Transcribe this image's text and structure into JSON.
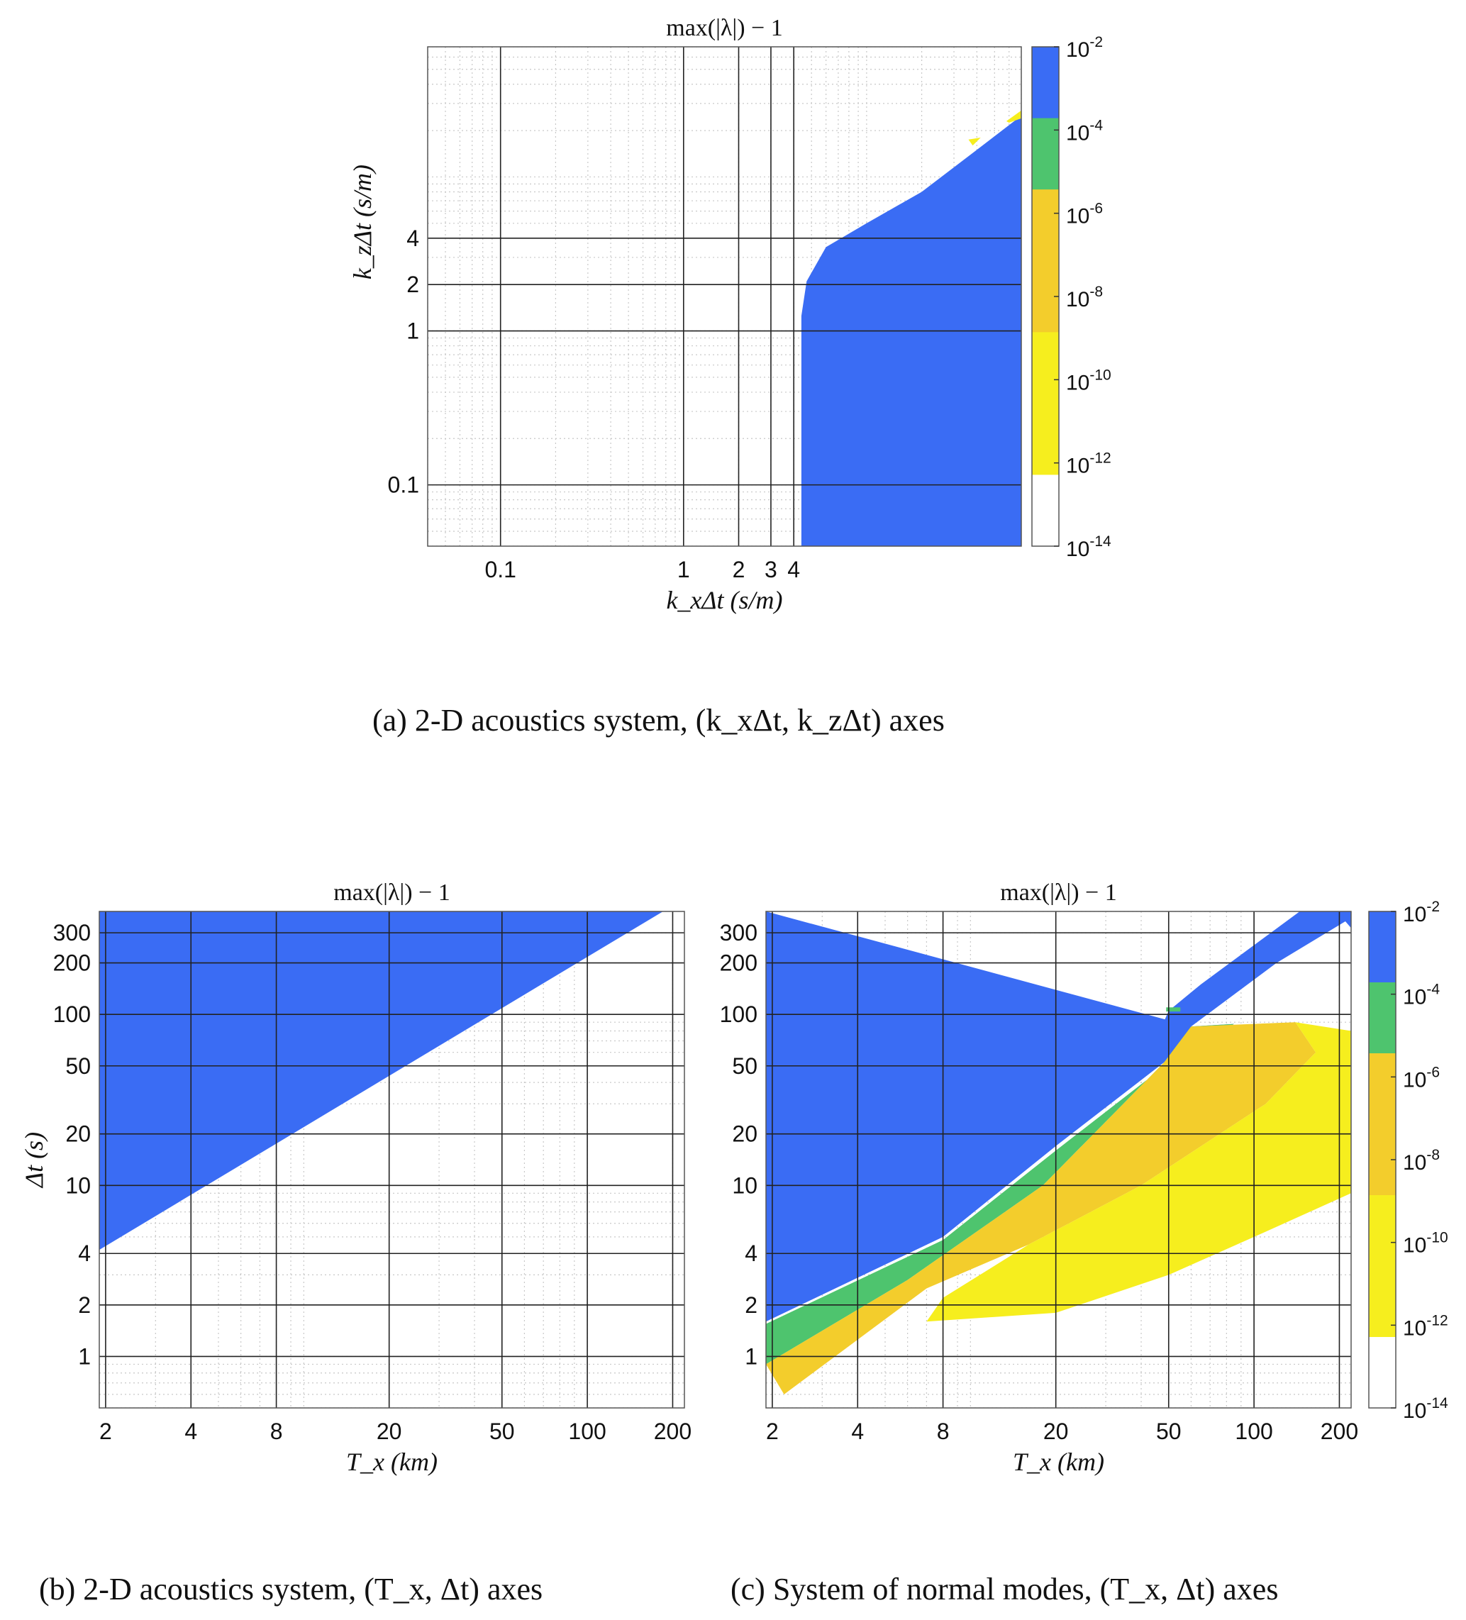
{
  "colors": {
    "blue": "#3a6cf4",
    "green": "#4ec46e",
    "orange": "#f3cd2c",
    "yellow": "#f6ee1e",
    "white": "#ffffff",
    "grid": "#000000"
  },
  "colorbar": {
    "labels": [
      "10^-2",
      "10^-4",
      "10^-6",
      "10^-8",
      "10^-10",
      "10^-12",
      "10^-14"
    ],
    "bands": [
      "blue",
      "green",
      "orange",
      "orange",
      "yellow",
      "yellow",
      "white"
    ]
  },
  "captions": {
    "a": "(a) 2-D acoustics system, (k_xΔt, k_zΔt) axes",
    "b": "(b) 2-D acoustics system, (T_x, Δt) axes",
    "c": "(c) System of normal modes, (T_x, Δt) axes"
  },
  "chart_data": [
    {
      "id": "a",
      "type": "heatmap",
      "title": "max(|λ|) − 1",
      "xlabel": "k_xΔt (s/m)",
      "ylabel": "k_zΔt (s/m)",
      "xscale": "log",
      "yscale": "log",
      "xlim": [
        0.04,
        70
      ],
      "ylim": [
        0.04,
        70
      ],
      "xticks": [
        0.1,
        1,
        2,
        3,
        4
      ],
      "xticklabels": [
        "0.1",
        "1",
        "2",
        "3",
        "4"
      ],
      "yticks": [
        0.1,
        1,
        2,
        4
      ],
      "yticklabels": [
        "0.1",
        "1",
        "2",
        "4"
      ],
      "grid": true,
      "colorbar": true,
      "regions": [
        {
          "color": "blue",
          "level": "10^-4 – 10^-2",
          "polygon": [
            [
              4.4,
              0.04
            ],
            [
              4.4,
              1.25
            ],
            [
              4.7,
              2.1
            ],
            [
              6.0,
              3.5
            ],
            [
              10,
              5.0
            ],
            [
              20,
              8
            ],
            [
              40,
              15
            ],
            [
              70,
              25
            ],
            [
              70,
              0.04
            ]
          ]
        },
        {
          "color": "yellow",
          "level": "10^-12 – 10^-10",
          "polygon": [
            [
              38,
              16
            ],
            [
              42,
              18
            ],
            [
              36,
              17.5
            ]
          ]
        },
        {
          "color": "yellow",
          "level": "10^-12 – 10^-10",
          "polygon": [
            [
              58,
              23
            ],
            [
              70,
              27
            ],
            [
              70,
              24
            ],
            [
              60,
              22.5
            ]
          ]
        }
      ]
    },
    {
      "id": "b",
      "type": "heatmap",
      "title": "max(|λ|) − 1",
      "xlabel": "T_x (km)",
      "ylabel": "Δt (s)",
      "xscale": "log",
      "yscale": "log",
      "xlim": [
        1.9,
        220
      ],
      "ylim": [
        0.5,
        400
      ],
      "xticks": [
        2,
        4,
        8,
        20,
        50,
        100,
        200
      ],
      "xticklabels": [
        "2",
        "4",
        "8",
        "20",
        "50",
        "100",
        "200"
      ],
      "yticks": [
        1,
        2,
        4,
        10,
        20,
        50,
        100,
        200,
        300
      ],
      "yticklabels": [
        "1",
        "2",
        "4",
        "10",
        "20",
        "50",
        "100",
        "200",
        "300"
      ],
      "grid": true,
      "colorbar": false,
      "regions": [
        {
          "color": "blue",
          "level": "10^-4 – 10^-2",
          "polygon": [
            [
              1.9,
              400
            ],
            [
              185,
              400
            ],
            [
              1.9,
              4.2
            ]
          ]
        }
      ]
    },
    {
      "id": "c",
      "type": "heatmap",
      "title": "max(|λ|) − 1",
      "xlabel": "T_x (km)",
      "ylabel": "",
      "xscale": "log",
      "yscale": "log",
      "xlim": [
        1.9,
        220
      ],
      "ylim": [
        0.5,
        400
      ],
      "xticks": [
        2,
        4,
        8,
        20,
        50,
        100,
        200
      ],
      "xticklabels": [
        "2",
        "4",
        "8",
        "20",
        "50",
        "100",
        "200"
      ],
      "yticks": [
        1,
        2,
        4,
        10,
        20,
        50,
        100,
        200,
        300
      ],
      "yticklabels": [
        "1",
        "2",
        "4",
        "10",
        "20",
        "50",
        "100",
        "200",
        "300"
      ],
      "grid": true,
      "colorbar": true,
      "regions": [
        {
          "color": "blue",
          "level": "10^-4 – 10^-2",
          "polygon": [
            [
              1.9,
              400
            ],
            [
              145,
              400
            ],
            [
              65,
              150
            ],
            [
              50,
              105
            ],
            [
              48,
              90
            ],
            [
              60,
              85
            ],
            [
              120,
              200
            ],
            [
              210,
              350
            ],
            [
              220,
              320
            ],
            [
              220,
              400
            ],
            [
              1.9,
              400
            ],
            [
              1.9,
              1.6
            ],
            [
              8,
              5
            ],
            [
              20,
              17
            ],
            [
              50,
              55
            ],
            [
              85,
              88
            ],
            [
              60,
              85
            ]
          ]
        },
        {
          "color": "green",
          "level": "10^-6 – 10^-4",
          "polygon": [
            [
              1.9,
              1.55
            ],
            [
              8,
              4.8
            ],
            [
              20,
              16
            ],
            [
              50,
              52
            ],
            [
              85,
              88
            ],
            [
              60,
              85
            ],
            [
              48,
              52
            ],
            [
              18,
              10
            ],
            [
              6,
              2.8
            ],
            [
              1.9,
              0.9
            ]
          ]
        },
        {
          "color": "orange",
          "level": "10^-8 – 10^-6",
          "polygon": [
            [
              1.9,
              0.9
            ],
            [
              6,
              2.8
            ],
            [
              18,
              10
            ],
            [
              48,
              52
            ],
            [
              60,
              85
            ],
            [
              140,
              90
            ],
            [
              165,
              60
            ],
            [
              110,
              30
            ],
            [
              40,
              10
            ],
            [
              16,
              4.5
            ],
            [
              7,
              2.5
            ],
            [
              2.2,
              0.6
            ]
          ]
        },
        {
          "color": "yellow",
          "level": "10^-12 – 10^-8",
          "polygon": [
            [
              7,
              1.6
            ],
            [
              20,
              1.8
            ],
            [
              50,
              3
            ],
            [
              100,
              5
            ],
            [
              220,
              9
            ],
            [
              220,
              80
            ],
            [
              140,
              90
            ],
            [
              165,
              60
            ],
            [
              110,
              30
            ],
            [
              40,
              10
            ],
            [
              16,
              4.5
            ],
            [
              8,
              2.2
            ]
          ]
        },
        {
          "color": "green",
          "level": "10^-6 – 10^-4",
          "polygon": [
            [
              49,
              110
            ],
            [
              55,
              110
            ],
            [
              55,
              104
            ],
            [
              49,
              104
            ]
          ]
        }
      ]
    }
  ]
}
